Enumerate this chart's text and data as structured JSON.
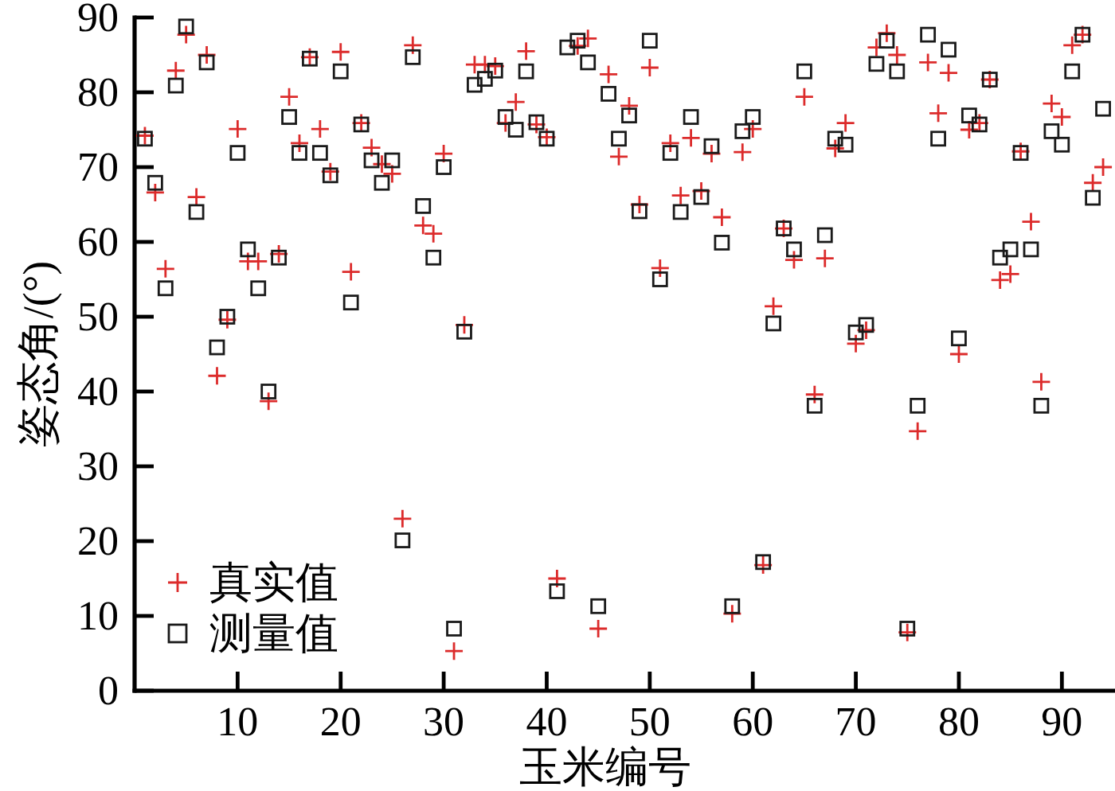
{
  "chart_data": {
    "type": "scatter",
    "xlabel": "玉米编号",
    "ylabel": "姿态角/(°)",
    "x": [
      1,
      2,
      3,
      4,
      5,
      6,
      7,
      8,
      9,
      10,
      11,
      12,
      13,
      14,
      15,
      16,
      17,
      18,
      19,
      20,
      21,
      22,
      23,
      24,
      25,
      26,
      27,
      28,
      29,
      30,
      31,
      32,
      33,
      34,
      35,
      36,
      37,
      38,
      39,
      40,
      41,
      42,
      43,
      44,
      45,
      46,
      47,
      48,
      49,
      50,
      51,
      52,
      53,
      54,
      55,
      56,
      57,
      58,
      59,
      60,
      61,
      62,
      63,
      64,
      65,
      66,
      67,
      68,
      69,
      70,
      71,
      72,
      73,
      74,
      75,
      76,
      77,
      78,
      79,
      80,
      81,
      82,
      83,
      84,
      85,
      86,
      87,
      88,
      89,
      90,
      91,
      92,
      93,
      94
    ],
    "series": [
      {
        "name": "真实值",
        "color": "#dc2b2b",
        "marker": "cross",
        "values": [
          74.2,
          66.6,
          56.4,
          82.9,
          87.7,
          66.0,
          85.0,
          42.1,
          49.6,
          75.1,
          57.4,
          57.4,
          38.7,
          58.4,
          79.4,
          73.2,
          84.7,
          75.1,
          69.4,
          85.4,
          56.0,
          75.9,
          72.6,
          70.4,
          69.1,
          23.0,
          86.3,
          62.2,
          61.1,
          71.8,
          5.3,
          48.9,
          83.7,
          83.7,
          83.5,
          75.9,
          78.7,
          85.5,
          75.7,
          74.0,
          15.0,
          null,
          86.2,
          87.2,
          8.3,
          82.4,
          71.4,
          78.2,
          65.0,
          83.3,
          56.5,
          73.2,
          66.2,
          73.9,
          66.8,
          71.8,
          63.3,
          10.3,
          72.0,
          75.1,
          16.8,
          51.4,
          61.8,
          57.6,
          79.4,
          39.6,
          57.8,
          72.5,
          75.9,
          46.4,
          48.2,
          86.0,
          87.9,
          85.0,
          7.8,
          34.7,
          84.0,
          77.2,
          82.6,
          45.0,
          75.0,
          75.9,
          81.7,
          54.9,
          55.7,
          72.1,
          62.7,
          41.3,
          78.5,
          76.7,
          86.3,
          87.7,
          67.9,
          70.0
        ]
      },
      {
        "name": "测量值",
        "color": "#1a1a1a",
        "marker": "square",
        "values": [
          73.8,
          67.9,
          53.8,
          80.9,
          88.8,
          64.0,
          84.0,
          45.9,
          50.0,
          71.9,
          59.0,
          53.8,
          40.0,
          57.9,
          76.7,
          71.9,
          84.5,
          71.9,
          68.9,
          82.8,
          51.9,
          75.7,
          70.9,
          67.9,
          70.9,
          20.1,
          84.7,
          64.8,
          57.9,
          70.0,
          8.3,
          48.0,
          81.0,
          81.8,
          82.9,
          76.7,
          75.0,
          82.8,
          76.0,
          73.8,
          13.3,
          86.0,
          86.9,
          84.0,
          11.3,
          79.8,
          73.8,
          76.9,
          64.1,
          86.9,
          55.0,
          71.9,
          64.0,
          76.7,
          66.0,
          72.8,
          59.9,
          11.3,
          74.8,
          76.7,
          17.2,
          49.1,
          61.8,
          59.0,
          82.8,
          38.1,
          60.9,
          73.8,
          73.0,
          47.9,
          48.9,
          83.8,
          86.9,
          82.8,
          8.3,
          38.1,
          87.7,
          73.8,
          85.7,
          47.1,
          76.9,
          75.7,
          81.7,
          57.9,
          59.0,
          71.9,
          59.0,
          38.1,
          74.8,
          73.0,
          82.8,
          87.7,
          65.9,
          77.8
        ]
      }
    ],
    "xlim": [
      0,
      95
    ],
    "ylim": [
      0,
      90
    ],
    "xticks": [
      10,
      20,
      30,
      40,
      50,
      60,
      70,
      80,
      90
    ],
    "yticks": [
      0,
      10,
      20,
      30,
      40,
      50,
      60,
      70,
      80,
      90
    ],
    "legend": "bottom left"
  }
}
